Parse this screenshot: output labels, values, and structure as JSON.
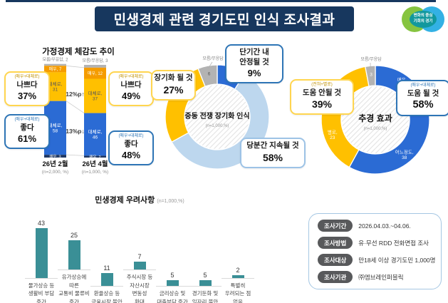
{
  "header": {
    "title": "민생경제 관련 경기도민 인식 조사결과",
    "logo": {
      "line1": "변화의 중심",
      "line2": "기회의 경기"
    }
  },
  "colors": {
    "navy": "#17375e",
    "blue": "#2b6bd4",
    "lightblue": "#bdd7ee",
    "yellow": "#ffc000",
    "orange": "#f59c00",
    "dark_navy": "#1f3864",
    "gray": "#b3b3b3",
    "teal": "#3a8f96"
  },
  "chart_data": [
    {
      "id": "household",
      "type": "stacked-bar",
      "title": "가정경제 체감도 추이",
      "unknown_label": "모름/무응답",
      "bars": [
        {
          "label": "26년 2월",
          "n_label": "(n=2,000, %)",
          "unknown": 2,
          "segments": [
            {
              "name": "매우",
              "value": 7
            },
            {
              "name": "대체로",
              "value": 31
            },
            {
              "name": "대체로",
              "value": 58
            },
            {
              "name": "매우",
              "value": 3
            }
          ]
        },
        {
          "label": "26년 4월",
          "n_label": "(n=1,000, %)",
          "unknown": 3,
          "segments": [
            {
              "name": "매우",
              "value": 12
            },
            {
              "name": "대체로",
              "value": 37
            },
            {
              "name": "대체로",
              "value": 46
            },
            {
              "name": "매우",
              "value": 2
            }
          ]
        }
      ],
      "changes": [
        {
          "text": "12%p",
          "direction": "up"
        },
        {
          "text": "13%p",
          "direction": "down"
        }
      ],
      "callouts": [
        {
          "small": "(매우+대체로)",
          "label": "나쁘다",
          "pct": "37%",
          "theme": "yellow"
        },
        {
          "small": "(매우+대체로)",
          "label": "좋다",
          "pct": "61%",
          "theme": "blue"
        },
        {
          "small": "(매우+대체로)",
          "label": "나쁘다",
          "pct": "49%",
          "theme": "yellow"
        },
        {
          "small": "(매우+대체로)",
          "label": "좋다",
          "pct": "48%",
          "theme": "blue"
        }
      ]
    },
    {
      "id": "war",
      "type": "donut",
      "center_title": "중동 전쟁 장기화 인식",
      "center_n": "(n=1,000,%)",
      "top_label": "모름/무응답",
      "segments": [
        {
          "name": "단기간 내 안정될 것",
          "value": 9,
          "color_key": "blue"
        },
        {
          "name": "당분간 지속될 것",
          "value": 58,
          "color_key": "lightblue"
        },
        {
          "name": "장기화 될 것",
          "value": 27,
          "color_key": "yellow"
        },
        {
          "name": "모름/무응답",
          "value": 6,
          "color_key": "gray",
          "inside_label": "6",
          "inside_dark": true
        }
      ],
      "callouts": [
        {
          "lines": [
            "단기간 내",
            "안정될 것"
          ],
          "pct": "9%",
          "theme": "darkblue"
        },
        {
          "lines": [
            "장기화 될 것"
          ],
          "pct": "27%",
          "theme": "yellow"
        },
        {
          "lines": [
            "당분간 지속될 것"
          ],
          "pct": "58%",
          "theme": "lightblue"
        }
      ]
    },
    {
      "id": "budget",
      "type": "donut",
      "center_title": "추경 효과",
      "center_n": "(n=1,000,%)",
      "top_label": "모름/무응답",
      "segments": [
        {
          "name": "매우",
          "value": 20,
          "color_key": "blue",
          "inside_label": "매우,\n20"
        },
        {
          "name": "어느정도",
          "value": 38,
          "color_key": "blue",
          "inside_label": "어느정도,\n38"
        },
        {
          "name": "별로",
          "value": 23,
          "color_key": "yellow",
          "inside_label": "별로,\n23"
        },
        {
          "name": "전혀",
          "value": 16,
          "color_key": "yellow",
          "inside_label": "전혀,\n16"
        },
        {
          "name": "모름/무응답",
          "value": 3,
          "color_key": "gray",
          "inside_label": "3"
        }
      ],
      "callouts": [
        {
          "small": "(매우+대체로)",
          "lines": [
            "도움 될 것"
          ],
          "pct": "58%",
          "theme": "darkblue"
        },
        {
          "small": "(전혀+별로)",
          "lines": [
            "도움 안될 것"
          ],
          "pct": "39%",
          "theme": "yellow"
        }
      ]
    },
    {
      "id": "concerns",
      "type": "bar",
      "title": "민생경제 우려사항",
      "n_label": "(n=1,000,%)",
      "categories": [
        "물가상승 등\n생활비 부담\n증가",
        "유가상승에\n따른\n교통비 물류비\n증가",
        "환율상승 등\n금융시장 불안",
        "주식시장 등\n자산시장\n변동성\n확대",
        "금리상승 및\n대출부담 증가",
        "경기둔화 및\n일자리 불안",
        "특별히\n우려되는 점\n없음"
      ],
      "values": [
        43,
        25,
        11,
        7,
        5,
        5,
        2
      ]
    }
  ],
  "survey_info": {
    "rows": [
      {
        "label": "조사기간",
        "value": "2026.04.03.~04.06."
      },
      {
        "label": "조사방법",
        "value": "유·무선 RDD 전화면접 조사"
      },
      {
        "label": "조사대상",
        "value": "만18세 이상 경기도민 1,000명"
      },
      {
        "label": "조사기관",
        "value": "㈜엠브레인퍼블릭"
      }
    ]
  }
}
